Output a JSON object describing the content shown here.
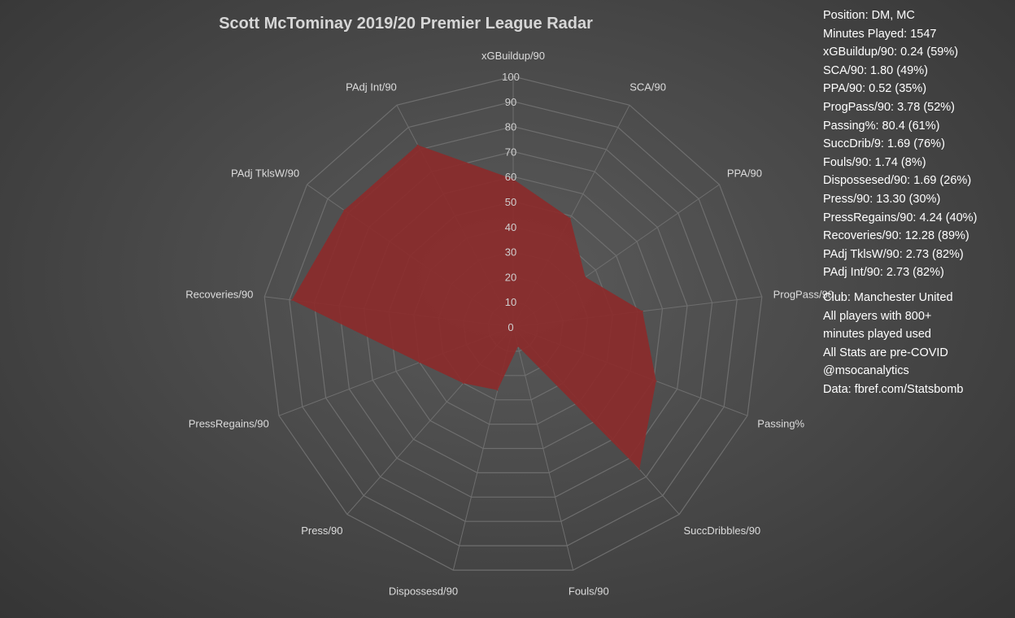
{
  "title": "Scott McTominay 2019/20 Premier League Radar",
  "colors": {
    "fill": "#8b2b2b",
    "grid": "#6e6e6e",
    "label": "#dcdcdc",
    "tick": "#cfcfcf"
  },
  "chart_data": {
    "type": "radar",
    "title": "Scott McTominay 2019/20 Premier League Radar",
    "rlim": [
      0,
      100
    ],
    "ticks": [
      "0",
      "10",
      "20",
      "30",
      "40",
      "50",
      "60",
      "70",
      "80",
      "90",
      "100"
    ],
    "axes": [
      "xGBuildup/90",
      "SCA/90",
      "PPA/90",
      "ProgPass/90",
      "Passing%",
      "SuccDribbles/90",
      "Fouls/90",
      "Dispossesd/90",
      "Press/90",
      "PressRegains/90",
      "Recoveries/90",
      "PAdj TklsW/90",
      "PAdj Int/90"
    ],
    "series": [
      {
        "values": [
          59,
          49,
          35,
          52,
          61,
          76,
          8,
          26,
          30,
          40,
          89,
          82,
          82
        ]
      }
    ],
    "grid": true
  },
  "info": {
    "lines": [
      "Position: DM, MC",
      "Minutes Played: 1547",
      "xGBuildup/90: 0.24 (59%)",
      "SCA/90: 1.80 (49%)",
      "PPA/90: 0.52 (35%)",
      "ProgPass/90: 3.78 (52%)",
      "Passing%: 80.4 (61%)",
      "SuccDrib/9: 1.69 (76%)",
      "Fouls/90: 1.74 (8%)",
      "Dispossesed/90: 1.69 (26%)",
      "Press/90: 13.30 (30%)",
      "PressRegains/90: 4.24 (40%)",
      "Recoveries/90: 12.28 (89%)",
      "PAdj TklsW/90: 2.73 (82%)",
      "PAdj Int/90: 2.73 (82%)"
    ],
    "notes": [
      "Club: Manchester United",
      "All players with 800+",
      "minutes played used",
      "All Stats are pre-COVID",
      "@msocanalytics",
      "Data: fbref.com/Statsbomb"
    ]
  }
}
